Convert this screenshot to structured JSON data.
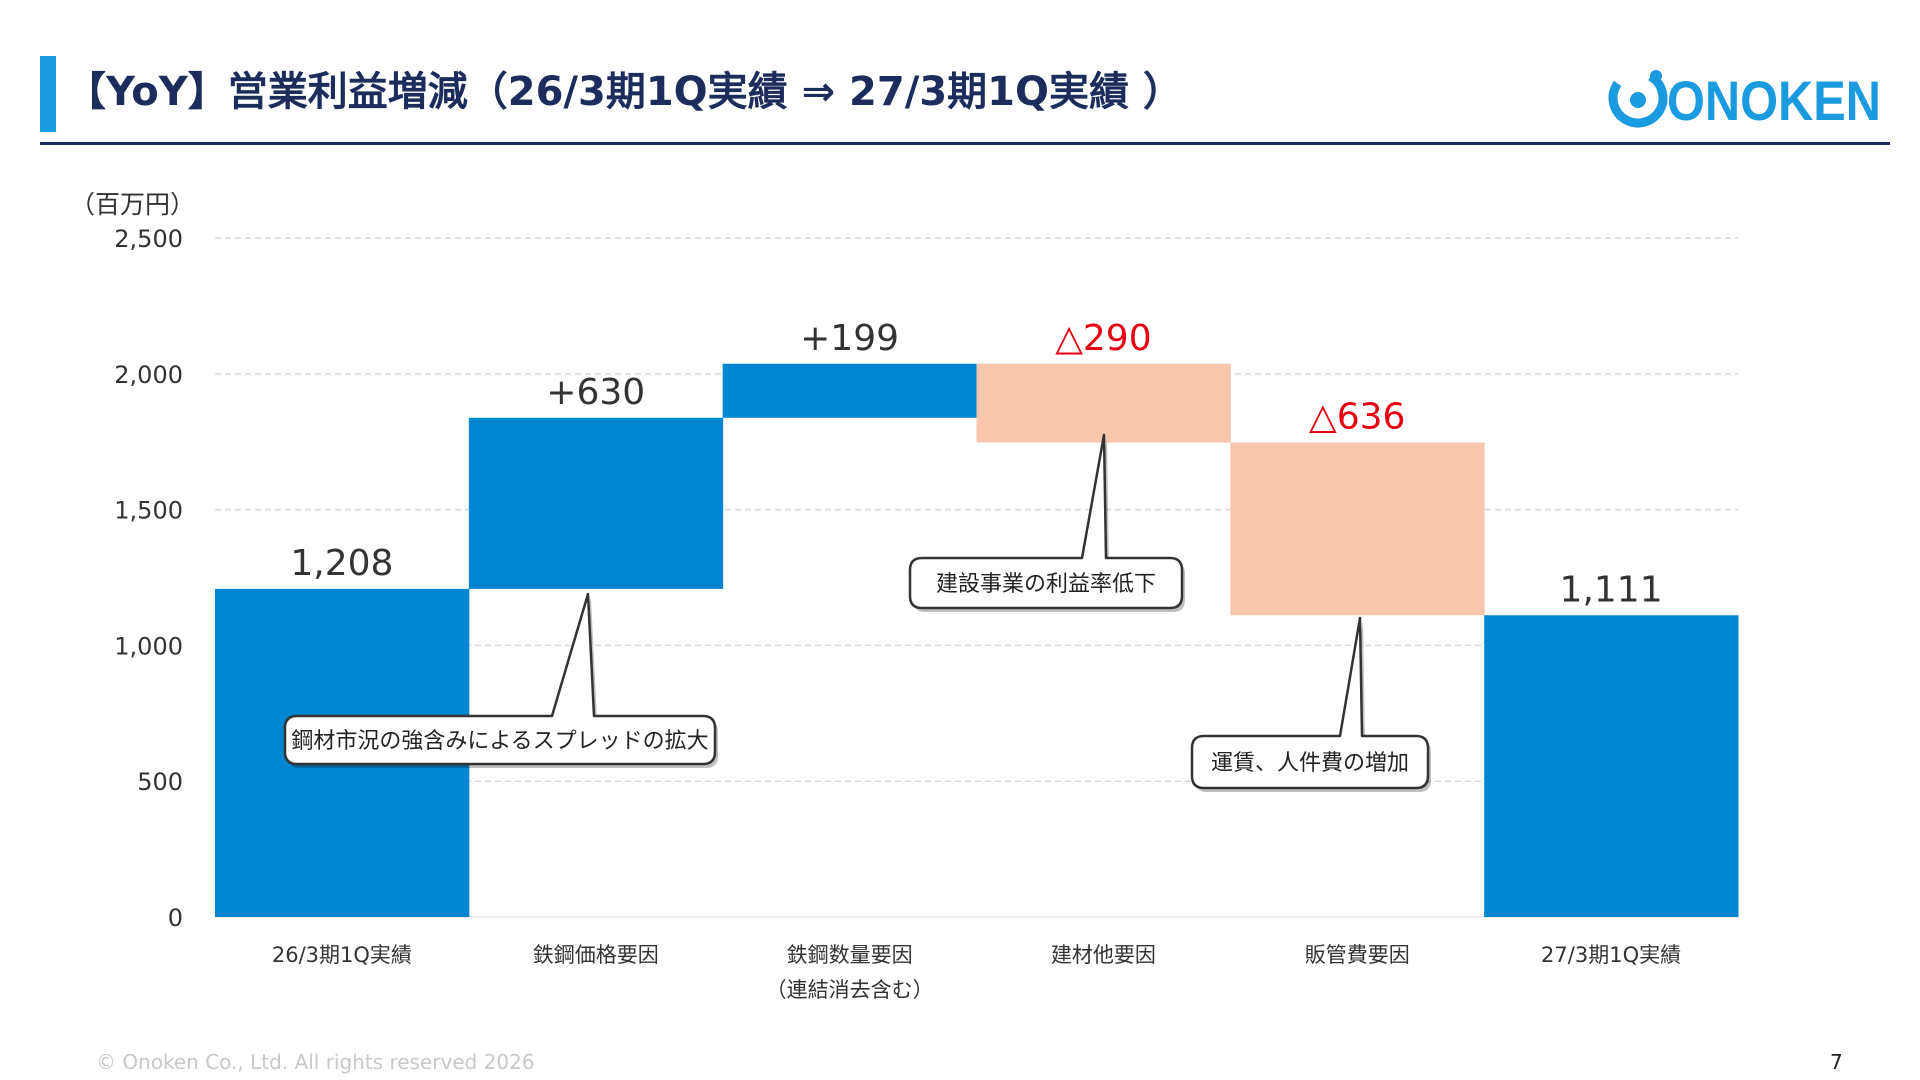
{
  "header": {
    "title": "【YoY】営業利益増減（26/3期1Q実績 ⇒ 27/3期1Q実績 ）",
    "logo_text": "ONOKEN"
  },
  "footer": {
    "copyright": "© Onoken Co., Ltd. All rights reserved 2026",
    "page_number": "7"
  },
  "colors": {
    "increase": "#0085d0",
    "decrease": "#f7c6ac",
    "negative_label": "#e60012",
    "title": "#1d2d5b",
    "accent": "#1a9be0"
  },
  "chart_data": {
    "type": "waterfall",
    "unit_label": "（百万円）",
    "ylim": [
      0,
      2500
    ],
    "yticks": [
      0,
      500,
      1000,
      1500,
      2000,
      2500
    ],
    "ytick_labels": [
      "0",
      "500",
      "1,000",
      "1,500",
      "2,000",
      "2,500"
    ],
    "grid": true,
    "categories": [
      {
        "label": "26/3期1Q実績",
        "sublabel": ""
      },
      {
        "label": "鉄鋼価格要因",
        "sublabel": ""
      },
      {
        "label": "鉄鋼数量要因",
        "sublabel": "（連結消去含む）"
      },
      {
        "label": "建材他要因",
        "sublabel": ""
      },
      {
        "label": "販管費要因",
        "sublabel": ""
      },
      {
        "label": "27/3期1Q実績",
        "sublabel": ""
      }
    ],
    "bars": [
      {
        "kind": "total",
        "start": 0,
        "end": 1208,
        "value_label": "1,208"
      },
      {
        "kind": "increase",
        "start": 1208,
        "end": 1838,
        "value_label": "+630"
      },
      {
        "kind": "increase",
        "start": 1838,
        "end": 2037,
        "value_label": "+199"
      },
      {
        "kind": "decrease",
        "start": 2037,
        "end": 1747,
        "value_label": "△290"
      },
      {
        "kind": "decrease",
        "start": 1747,
        "end": 1111,
        "value_label": "△636"
      },
      {
        "kind": "total",
        "start": 0,
        "end": 1111,
        "value_label": "1,111"
      }
    ],
    "callouts": [
      {
        "bar": 1,
        "text": "鋼材市況の強含みによるスプレッドの拡大"
      },
      {
        "bar": 3,
        "text": "建設事業の利益率低下"
      },
      {
        "bar": 4,
        "text": "運賃、人件費の増加"
      }
    ]
  }
}
